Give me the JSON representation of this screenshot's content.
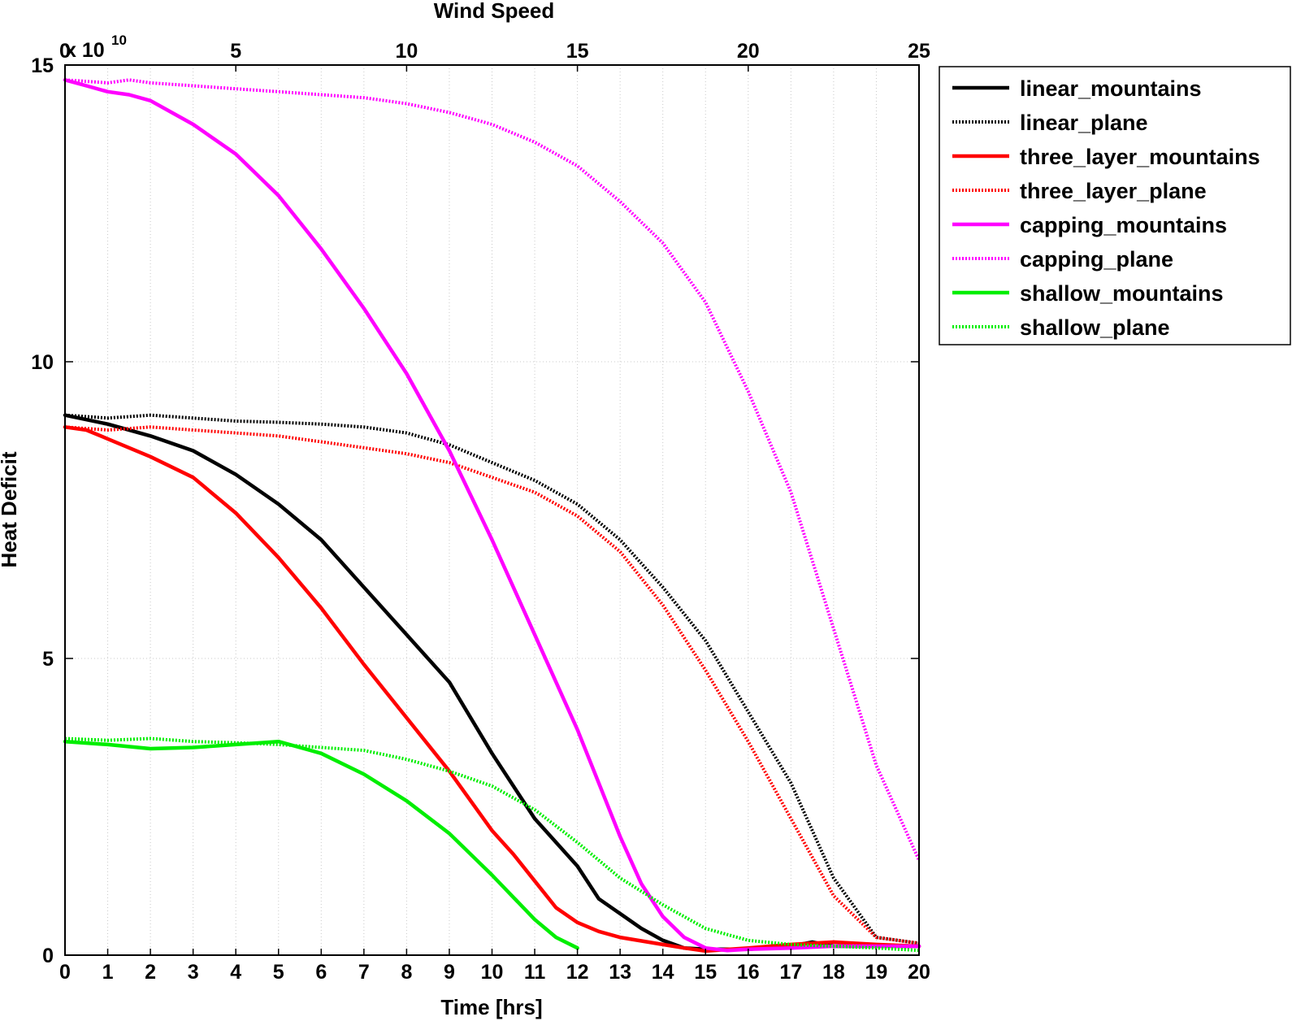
{
  "chart_data": {
    "type": "line",
    "xlabel": "Time [hrs]",
    "ylabel": "Heat Deficit",
    "top_xlabel": "Wind Speed",
    "y_exponent_label": "x 10",
    "y_exponent_power": "10",
    "xlim": [
      0,
      20
    ],
    "ylim": [
      0,
      15
    ],
    "top_xlim": [
      0,
      25
    ],
    "x_ticks": [
      "0",
      "1",
      "2",
      "3",
      "4",
      "5",
      "6",
      "7",
      "8",
      "9",
      "10",
      "11",
      "12",
      "13",
      "14",
      "15",
      "16",
      "17",
      "18",
      "19",
      "20"
    ],
    "y_ticks": [
      "0",
      "5",
      "10",
      "15"
    ],
    "top_ticks": [
      "0",
      "5",
      "10",
      "15",
      "20",
      "25"
    ],
    "grid": true,
    "legend_position": "outside-top-right",
    "series": [
      {
        "name": "linear_mountains",
        "color": "#000000",
        "style": "solid",
        "x": [
          0,
          1,
          2,
          3,
          4,
          5,
          6,
          7,
          8,
          9,
          10,
          11,
          12,
          12.5,
          13,
          13.5,
          14,
          14.5,
          15,
          16,
          17,
          17.5,
          18,
          19,
          20
        ],
        "y": [
          9.1,
          8.95,
          8.75,
          8.5,
          8.1,
          7.6,
          7.0,
          6.2,
          5.4,
          4.6,
          3.4,
          2.3,
          1.5,
          0.95,
          0.7,
          0.45,
          0.25,
          0.12,
          0.1,
          0.1,
          0.15,
          0.22,
          0.15,
          0.15,
          0.15
        ]
      },
      {
        "name": "linear_plane",
        "color": "#000000",
        "style": "dotted",
        "x": [
          0,
          1,
          2,
          3,
          4,
          5,
          6,
          7,
          8,
          9,
          10,
          11,
          11.5,
          12,
          13,
          14,
          15,
          16,
          17,
          18,
          19,
          20
        ],
        "y": [
          9.1,
          9.05,
          9.1,
          9.05,
          9.0,
          8.98,
          8.95,
          8.9,
          8.8,
          8.6,
          8.3,
          8.0,
          7.8,
          7.6,
          7.0,
          6.2,
          5.3,
          4.1,
          2.9,
          1.3,
          0.3,
          0.2
        ]
      },
      {
        "name": "three_layer_mountains",
        "color": "#ff0000",
        "style": "solid",
        "x": [
          0,
          0.5,
          1,
          2,
          3,
          4,
          5,
          6,
          7,
          8,
          9,
          10,
          10.5,
          11,
          11.5,
          12,
          12.5,
          13,
          14,
          14.5,
          15,
          16,
          17,
          18,
          19,
          20
        ],
        "y": [
          8.9,
          8.85,
          8.7,
          8.4,
          8.05,
          7.45,
          6.7,
          5.85,
          4.9,
          4.0,
          3.1,
          2.1,
          1.7,
          1.25,
          0.8,
          0.55,
          0.4,
          0.3,
          0.18,
          0.12,
          0.07,
          0.12,
          0.18,
          0.22,
          0.18,
          0.15
        ]
      },
      {
        "name": "three_layer_plane",
        "color": "#ff0000",
        "style": "dotted",
        "x": [
          0,
          1,
          2,
          3,
          4,
          5,
          6,
          7,
          8,
          9,
          10,
          11,
          12,
          13,
          14,
          15,
          16,
          17,
          18,
          19,
          20
        ],
        "y": [
          8.9,
          8.85,
          8.9,
          8.85,
          8.8,
          8.75,
          8.65,
          8.55,
          8.45,
          8.3,
          8.05,
          7.8,
          7.4,
          6.8,
          5.9,
          4.8,
          3.6,
          2.3,
          1.0,
          0.3,
          0.2
        ]
      },
      {
        "name": "capping_mountains",
        "color": "#ff00ff",
        "style": "solid",
        "x": [
          0,
          0.5,
          1,
          1.5,
          2,
          3,
          4,
          5,
          6,
          7,
          8,
          9,
          10,
          11,
          12,
          12.5,
          13,
          13.5,
          14,
          14.5,
          15,
          15.5,
          16,
          17,
          18,
          19,
          20
        ],
        "y": [
          14.75,
          14.65,
          14.55,
          14.5,
          14.4,
          14.0,
          13.5,
          12.8,
          11.9,
          10.9,
          9.8,
          8.5,
          7.0,
          5.4,
          3.8,
          2.9,
          2.0,
          1.2,
          0.65,
          0.3,
          0.12,
          0.08,
          0.1,
          0.12,
          0.15,
          0.15,
          0.15
        ]
      },
      {
        "name": "capping_plane",
        "color": "#ff00ff",
        "style": "dotted",
        "x": [
          0,
          1,
          1.5,
          2,
          3,
          4,
          5,
          6,
          7,
          8,
          9,
          10,
          11,
          12,
          13,
          14,
          15,
          16,
          17,
          18,
          19,
          20
        ],
        "y": [
          14.75,
          14.7,
          14.75,
          14.7,
          14.65,
          14.6,
          14.55,
          14.5,
          14.45,
          14.35,
          14.2,
          14.0,
          13.7,
          13.3,
          12.7,
          12.0,
          11.0,
          9.5,
          7.8,
          5.5,
          3.2,
          1.6
        ]
      },
      {
        "name": "shallow_mountains",
        "color": "#00ee00",
        "style": "solid",
        "x": [
          0,
          1,
          2,
          3,
          4,
          5,
          6,
          7,
          8,
          9,
          10,
          11,
          11.5,
          12
        ],
        "y": [
          3.6,
          3.55,
          3.48,
          3.5,
          3.55,
          3.6,
          3.4,
          3.05,
          2.6,
          2.05,
          1.35,
          0.6,
          0.3,
          0.12
        ]
      },
      {
        "name": "shallow_plane",
        "color": "#00ee00",
        "style": "dotted",
        "x": [
          0,
          1,
          2,
          3,
          4,
          5,
          6,
          7,
          8,
          9,
          10,
          11,
          12,
          13,
          14,
          15,
          16,
          17,
          18,
          19,
          20
        ],
        "y": [
          3.65,
          3.62,
          3.65,
          3.6,
          3.58,
          3.55,
          3.5,
          3.45,
          3.3,
          3.1,
          2.85,
          2.45,
          1.9,
          1.3,
          0.85,
          0.45,
          0.25,
          0.18,
          0.15,
          0.12,
          0.08
        ]
      }
    ]
  }
}
